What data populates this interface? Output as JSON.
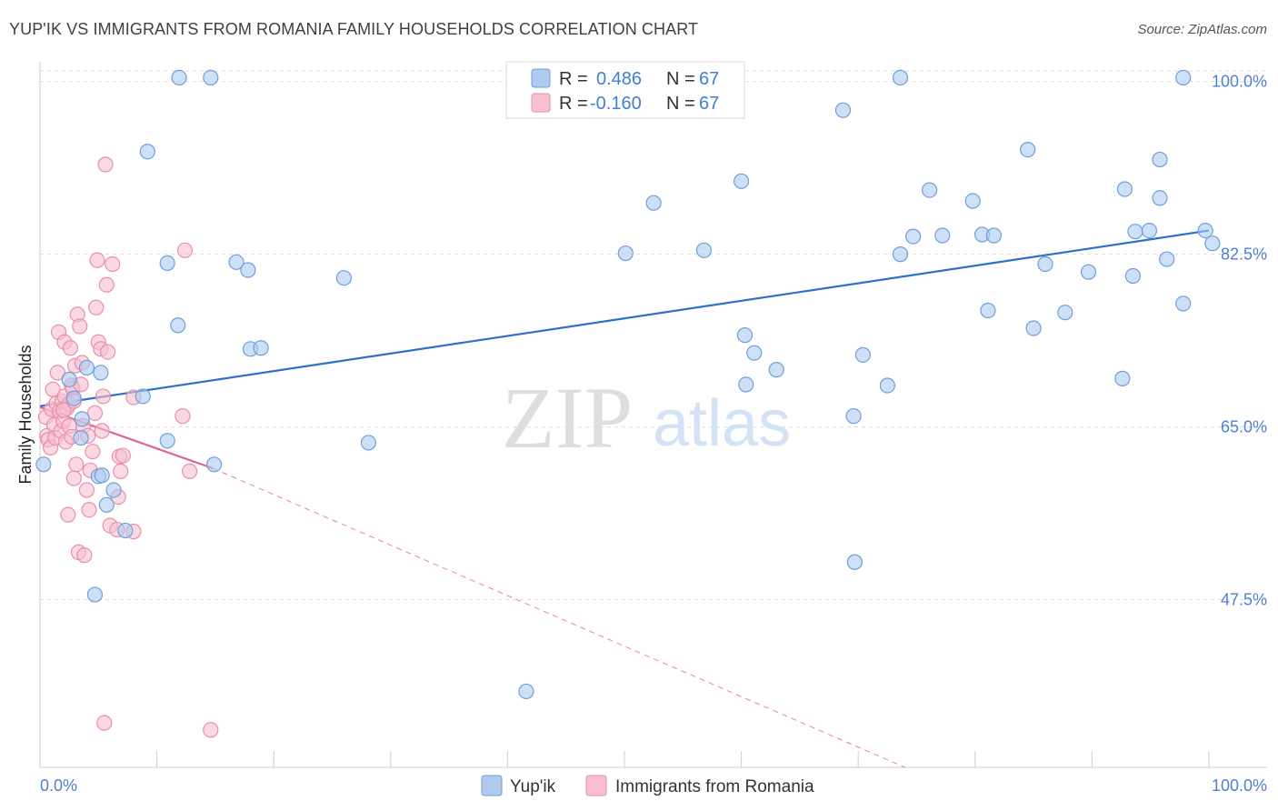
{
  "header": {
    "title": "YUP'IK VS IMMIGRANTS FROM ROMANIA FAMILY HOUSEHOLDS CORRELATION CHART",
    "source": "Source: ZipAtlas.com"
  },
  "watermark": {
    "zip": "ZIP",
    "atlas": "atlas"
  },
  "legend": {
    "series": [
      {
        "r_label": "R =",
        "r_value": "0.486",
        "n_label": "N =",
        "n_value": "67"
      },
      {
        "r_label": "R =",
        "r_value": "-0.160",
        "n_label": "N =",
        "n_value": "67"
      }
    ]
  },
  "bottom_legend": {
    "items": [
      "Yup'ik",
      "Immigrants from Romania"
    ]
  },
  "colors": {
    "blue_fill": "#aecbef",
    "blue_stroke": "#6f9fdc",
    "blue_line": "#2f6fcc",
    "pink_fill": "#f7bfd0",
    "pink_stroke": "#ea8fab",
    "pink_line": "#e0668f",
    "grid": "#dddddd",
    "axis_text": "#4f7fcf"
  },
  "chart_data": {
    "type": "scatter",
    "title": "YUP'IK VS IMMIGRANTS FROM ROMANIA FAMILY HOUSEHOLDS CORRELATION CHART",
    "xlabel": "",
    "ylabel": "Family Households",
    "xlim": [
      0,
      100
    ],
    "ylim": [
      30.5,
      102
    ],
    "x_tick_labels": [
      "0.0%",
      "100.0%"
    ],
    "y_ticks": [
      47.5,
      65.0,
      82.5,
      100.0
    ],
    "y_tick_labels": [
      "47.5%",
      "65.0%",
      "82.5%",
      "100.0%"
    ],
    "grid": true,
    "series": [
      {
        "name": "Yup'ik",
        "r": 0.486,
        "n": 67,
        "trend": {
          "x": [
            0,
            100
          ],
          "y": [
            67.1,
            84.9
          ],
          "dashed_extension": false
        },
        "points": [
          [
            0.3,
            61.2
          ],
          [
            2.5,
            69.8
          ],
          [
            2.9,
            67.9
          ],
          [
            3.5,
            63.9
          ],
          [
            3.6,
            65.8
          ],
          [
            4.0,
            71.0
          ],
          [
            4.7,
            48.0
          ],
          [
            5.0,
            60.0
          ],
          [
            5.2,
            70.5
          ],
          [
            5.3,
            60.1
          ],
          [
            5.7,
            57.1
          ],
          [
            6.3,
            58.6
          ],
          [
            7.3,
            54.5
          ],
          [
            8.8,
            68.1
          ],
          [
            9.2,
            92.9
          ],
          [
            10.9,
            81.6
          ],
          [
            10.9,
            63.6
          ],
          [
            11.8,
            75.3
          ],
          [
            11.9,
            100.4
          ],
          [
            14.6,
            100.4
          ],
          [
            14.9,
            61.2
          ],
          [
            16.8,
            81.7
          ],
          [
            17.8,
            80.9
          ],
          [
            18.0,
            72.9
          ],
          [
            18.9,
            73.0
          ],
          [
            26.0,
            80.1
          ],
          [
            28.1,
            63.4
          ],
          [
            41.6,
            38.2
          ],
          [
            50.1,
            82.6
          ],
          [
            52.5,
            87.7
          ],
          [
            56.8,
            82.9
          ],
          [
            60.0,
            89.9
          ],
          [
            60.3,
            74.3
          ],
          [
            60.4,
            69.3
          ],
          [
            61.1,
            72.5
          ],
          [
            63.0,
            70.8
          ],
          [
            68.7,
            97.1
          ],
          [
            69.6,
            66.1
          ],
          [
            69.7,
            51.3
          ],
          [
            70.4,
            72.3
          ],
          [
            72.5,
            69.2
          ],
          [
            73.6,
            100.4
          ],
          [
            73.6,
            82.5
          ],
          [
            74.7,
            84.3
          ],
          [
            76.1,
            89.0
          ],
          [
            77.2,
            84.4
          ],
          [
            79.8,
            87.9
          ],
          [
            80.6,
            84.5
          ],
          [
            81.1,
            76.8
          ],
          [
            81.6,
            84.4
          ],
          [
            84.5,
            93.1
          ],
          [
            85.0,
            75.0
          ],
          [
            86.0,
            81.5
          ],
          [
            87.7,
            76.6
          ],
          [
            89.7,
            80.7
          ],
          [
            92.6,
            69.9
          ],
          [
            92.8,
            89.1
          ],
          [
            93.5,
            80.3
          ],
          [
            93.7,
            84.8
          ],
          [
            94.9,
            84.9
          ],
          [
            95.8,
            92.1
          ],
          [
            95.8,
            88.2
          ],
          [
            96.4,
            82.0
          ],
          [
            97.8,
            77.5
          ],
          [
            97.8,
            100.4
          ],
          [
            99.7,
            84.9
          ],
          [
            100.3,
            83.6
          ]
        ]
      },
      {
        "name": "Immigrants from Romania",
        "r": -0.16,
        "n": 67,
        "trend": {
          "x": [
            0,
            14.8,
            74.0
          ],
          "y": [
            67.0,
            60.8,
            30.5
          ],
          "dashed_extension": true
        },
        "points": [
          [
            0.5,
            66.0
          ],
          [
            0.6,
            64.1
          ],
          [
            0.7,
            63.7
          ],
          [
            0.9,
            62.9
          ],
          [
            1.0,
            66.8
          ],
          [
            1.1,
            68.8
          ],
          [
            1.2,
            65.2
          ],
          [
            1.3,
            63.9
          ],
          [
            1.4,
            67.4
          ],
          [
            1.5,
            70.5
          ],
          [
            1.6,
            74.6
          ],
          [
            1.7,
            66.6
          ],
          [
            1.8,
            64.6
          ],
          [
            1.9,
            67.6
          ],
          [
            2.0,
            65.6
          ],
          [
            2.1,
            68.1
          ],
          [
            2.1,
            73.6
          ],
          [
            2.2,
            63.5
          ],
          [
            2.3,
            66.9
          ],
          [
            2.4,
            56.1
          ],
          [
            2.5,
            67.3
          ],
          [
            2.5,
            65.1
          ],
          [
            2.6,
            73.0
          ],
          [
            2.7,
            64.0
          ],
          [
            2.7,
            69.2
          ],
          [
            2.8,
            68.9
          ],
          [
            2.9,
            67.6
          ],
          [
            2.9,
            59.8
          ],
          [
            3.0,
            71.2
          ],
          [
            3.1,
            61.2
          ],
          [
            3.2,
            76.4
          ],
          [
            3.3,
            52.3
          ],
          [
            3.4,
            75.2
          ],
          [
            3.5,
            69.3
          ],
          [
            3.6,
            71.5
          ],
          [
            3.7,
            65.1
          ],
          [
            3.8,
            52.0
          ],
          [
            4.0,
            58.6
          ],
          [
            4.1,
            64.1
          ],
          [
            4.2,
            56.6
          ],
          [
            4.3,
            60.6
          ],
          [
            4.5,
            62.5
          ],
          [
            4.7,
            66.4
          ],
          [
            4.8,
            77.1
          ],
          [
            4.9,
            81.9
          ],
          [
            5.0,
            73.6
          ],
          [
            5.2,
            72.9
          ],
          [
            5.3,
            64.6
          ],
          [
            5.4,
            68.1
          ],
          [
            5.5,
            35.0
          ],
          [
            5.6,
            91.6
          ],
          [
            5.7,
            79.4
          ],
          [
            5.8,
            72.6
          ],
          [
            6.0,
            55.0
          ],
          [
            6.2,
            81.5
          ],
          [
            6.6,
            54.6
          ],
          [
            6.7,
            57.9
          ],
          [
            6.8,
            62.0
          ],
          [
            6.9,
            60.5
          ],
          [
            7.1,
            62.1
          ],
          [
            8.0,
            68.0
          ],
          [
            8.0,
            54.4
          ],
          [
            12.2,
            66.1
          ],
          [
            12.4,
            82.9
          ],
          [
            12.8,
            60.5
          ],
          [
            14.6,
            34.3
          ],
          [
            2.0,
            66.7
          ]
        ]
      }
    ]
  }
}
